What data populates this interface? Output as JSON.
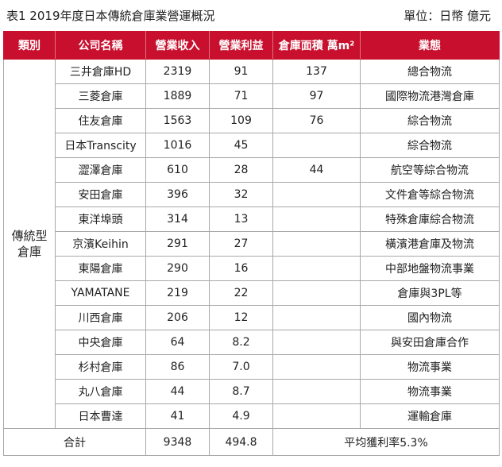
{
  "caption": {
    "title": "表1  2019年度日本傳統倉庫業營運概況",
    "unit": "單位：日幣 億元"
  },
  "columns": [
    "類別",
    "公司名稱",
    "營業收入",
    "營業利益",
    "倉庫面積 萬m²",
    "業態"
  ],
  "category": "傳統型倉庫",
  "rows": [
    {
      "company": "三井倉庫HD",
      "revenue": "2319",
      "profit": "91",
      "area": "137",
      "business": "總合物流"
    },
    {
      "company": "三菱倉庫",
      "revenue": "1889",
      "profit": "71",
      "area": "97",
      "business": "國際物流港灣倉庫"
    },
    {
      "company": "住友倉庫",
      "revenue": "1563",
      "profit": "109",
      "area": "76",
      "business": "綜合物流"
    },
    {
      "company": "日本Transcity",
      "revenue": "1016",
      "profit": "45",
      "area": "",
      "business": "綜合物流"
    },
    {
      "company": "澀澤倉庫",
      "revenue": "610",
      "profit": "28",
      "area": "44",
      "business": "航空等綜合物流"
    },
    {
      "company": "安田倉庫",
      "revenue": "396",
      "profit": "32",
      "area": "",
      "business": "文件倉等綜合物流"
    },
    {
      "company": "東洋埠頭",
      "revenue": "314",
      "profit": "13",
      "area": "",
      "business": "特殊倉庫綜合物流"
    },
    {
      "company": "京濱Keihin",
      "revenue": "291",
      "profit": "27",
      "area": "",
      "business": "橫濱港倉庫及物流"
    },
    {
      "company": "東陽倉庫",
      "revenue": "290",
      "profit": "16",
      "area": "",
      "business": "中部地盤物流事業"
    },
    {
      "company": "YAMATANE",
      "revenue": "219",
      "profit": "22",
      "area": "",
      "business": "倉庫與3PL等"
    },
    {
      "company": "川西倉庫",
      "revenue": "206",
      "profit": "12",
      "area": "",
      "business": "國內物流"
    },
    {
      "company": "中央倉庫",
      "revenue": "64",
      "profit": "8.2",
      "area": "",
      "business": "與安田倉庫合作"
    },
    {
      "company": "杉村倉庫",
      "revenue": "86",
      "profit": "7.0",
      "area": "",
      "business": "物流事業"
    },
    {
      "company": "丸八倉庫",
      "revenue": "44",
      "profit": "8.7",
      "area": "",
      "business": "物流事業"
    },
    {
      "company": "日本曹達",
      "revenue": "41",
      "profit": "4.9",
      "area": "",
      "business": "運輸倉庫"
    }
  ],
  "total": {
    "label": "合計",
    "revenue": "9348",
    "profit": "494.8",
    "note": "平均獲利率5.3%"
  },
  "colors": {
    "header_bg": "#c8102e",
    "header_text": "#ffffff",
    "border": "#a8a8a8"
  }
}
